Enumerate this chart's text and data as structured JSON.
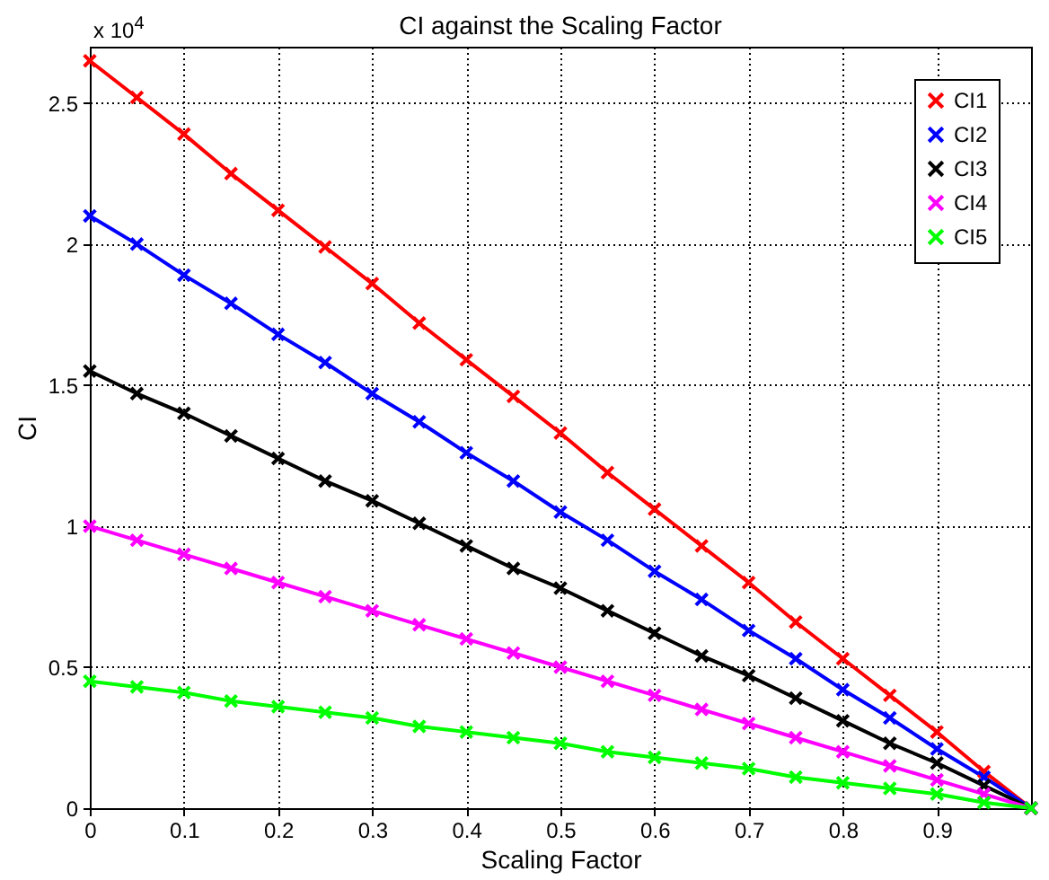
{
  "chart_data": {
    "type": "line",
    "title": "CI against the Scaling Factor",
    "xlabel": "Scaling Factor",
    "ylabel": "CI",
    "annotations": [
      "x 10$^{4}$"
    ],
    "x": [
      0,
      0.05,
      0.1,
      0.15,
      0.2,
      0.25,
      0.3,
      0.35,
      0.4,
      0.45,
      0.5,
      0.55,
      0.6,
      0.65,
      0.7,
      0.75,
      0.8,
      0.85,
      0.9,
      0.95,
      1
    ],
    "series": [
      {
        "name": "CI1",
        "color": "#ff0000",
        "values": [
          2.65,
          2.52,
          2.39,
          2.25,
          2.12,
          1.99,
          1.86,
          1.72,
          1.59,
          1.46,
          1.33,
          1.19,
          1.06,
          0.93,
          0.8,
          0.66,
          0.53,
          0.4,
          0.27,
          0.13,
          0
        ]
      },
      {
        "name": "CI2",
        "color": "#0000ff",
        "values": [
          2.1,
          2.0,
          1.89,
          1.79,
          1.68,
          1.58,
          1.47,
          1.37,
          1.26,
          1.16,
          1.05,
          0.95,
          0.84,
          0.74,
          0.63,
          0.53,
          0.42,
          0.32,
          0.21,
          0.11,
          0
        ]
      },
      {
        "name": "CI3",
        "color": "#000000",
        "values": [
          1.55,
          1.47,
          1.4,
          1.32,
          1.24,
          1.16,
          1.09,
          1.01,
          0.93,
          0.85,
          0.78,
          0.7,
          0.62,
          0.54,
          0.47,
          0.39,
          0.31,
          0.23,
          0.16,
          0.08,
          0
        ]
      },
      {
        "name": "CI4",
        "color": "#ff00ff",
        "values": [
          1.0,
          0.95,
          0.9,
          0.85,
          0.8,
          0.75,
          0.7,
          0.65,
          0.6,
          0.55,
          0.5,
          0.45,
          0.4,
          0.35,
          0.3,
          0.25,
          0.2,
          0.15,
          0.1,
          0.05,
          0
        ]
      },
      {
        "name": "CI5",
        "color": "#00ff00",
        "values": [
          0.45,
          0.43,
          0.41,
          0.38,
          0.36,
          0.34,
          0.32,
          0.29,
          0.27,
          0.25,
          0.23,
          0.2,
          0.18,
          0.16,
          0.14,
          0.11,
          0.09,
          0.07,
          0.05,
          0.02,
          0
        ]
      }
    ],
    "xlim": [
      0,
      1
    ],
    "xticks": [
      0,
      0.1,
      0.2,
      0.3,
      0.4,
      0.5,
      0.6,
      0.7,
      0.8,
      0.9
    ],
    "ylim": [
      0,
      2.7
    ],
    "yticks": [
      0,
      0.5,
      1,
      1.5,
      2,
      2.5
    ],
    "grid": true,
    "legend": "top right",
    "marker": "cross",
    "line_style": "solid"
  }
}
